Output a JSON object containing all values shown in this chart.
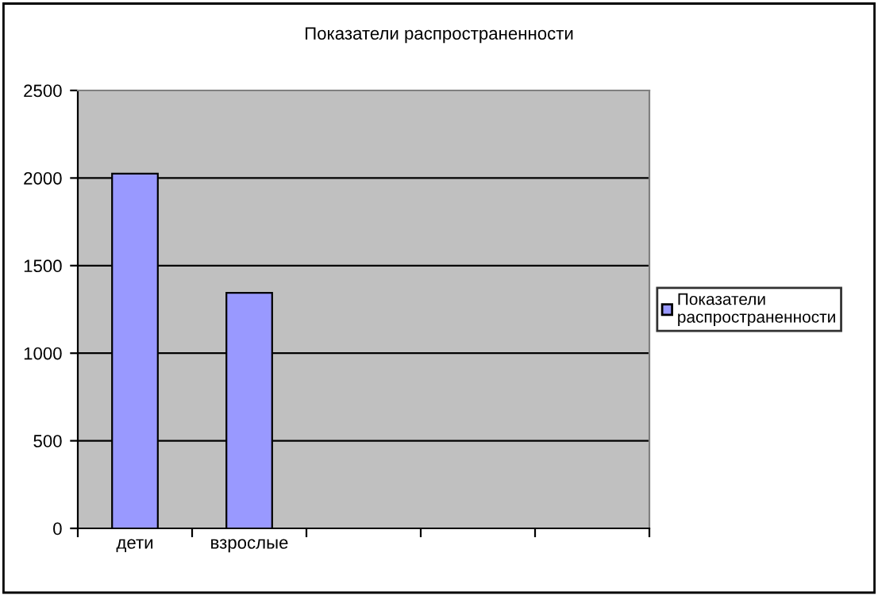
{
  "chart_data": {
    "type": "bar",
    "title": "Показатели распространенности",
    "categories": [
      "дети",
      "взрослые",
      null,
      null,
      null
    ],
    "series": [
      {
        "name": "Показатели распространенности",
        "color": "#9999ff",
        "values": [
          2025,
          1345,
          null,
          null,
          null
        ]
      }
    ],
    "ylim": [
      0,
      2500
    ],
    "yticks": [
      0,
      500,
      1000,
      1500,
      2000,
      2500
    ],
    "grid": "y",
    "legend": "right"
  }
}
